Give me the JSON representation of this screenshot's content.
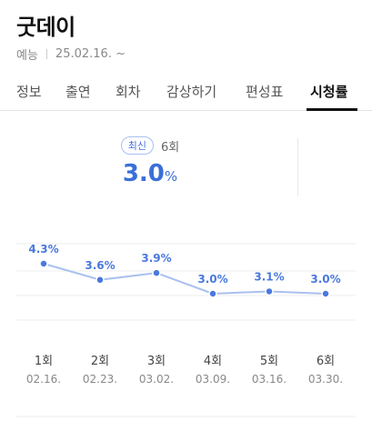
{
  "program": {
    "title": "굿데이",
    "genre": "예능",
    "air_date": "25.02.16. ~"
  },
  "tabs": [
    {
      "label": "정보",
      "active": false
    },
    {
      "label": "출연",
      "active": false
    },
    {
      "label": "회차",
      "active": false
    },
    {
      "label": "감상하기",
      "active": false
    },
    {
      "label": "편성표",
      "active": false
    },
    {
      "label": "시청률",
      "active": true
    }
  ],
  "summary": {
    "badge": "최신",
    "episode": "6회",
    "rating": "3.0",
    "unit": "%"
  },
  "colors": {
    "accent": "#3b6fd8",
    "line": "#a9c1ee",
    "point": "#4a78dc"
  },
  "chart_data": {
    "type": "line",
    "categories": [
      "1회",
      "2회",
      "3회",
      "4회",
      "5회",
      "6회"
    ],
    "dates": [
      "02.16.",
      "02.23.",
      "03.02.",
      "03.09.",
      "03.16.",
      "03.30."
    ],
    "values": [
      4.3,
      3.6,
      3.9,
      3.0,
      3.1,
      3.0
    ],
    "data_labels": [
      "4.3%",
      "3.6%",
      "3.9%",
      "3.0%",
      "3.1%",
      "3.0%"
    ],
    "title": "",
    "xlabel": "",
    "ylabel": "",
    "grid": true
  }
}
